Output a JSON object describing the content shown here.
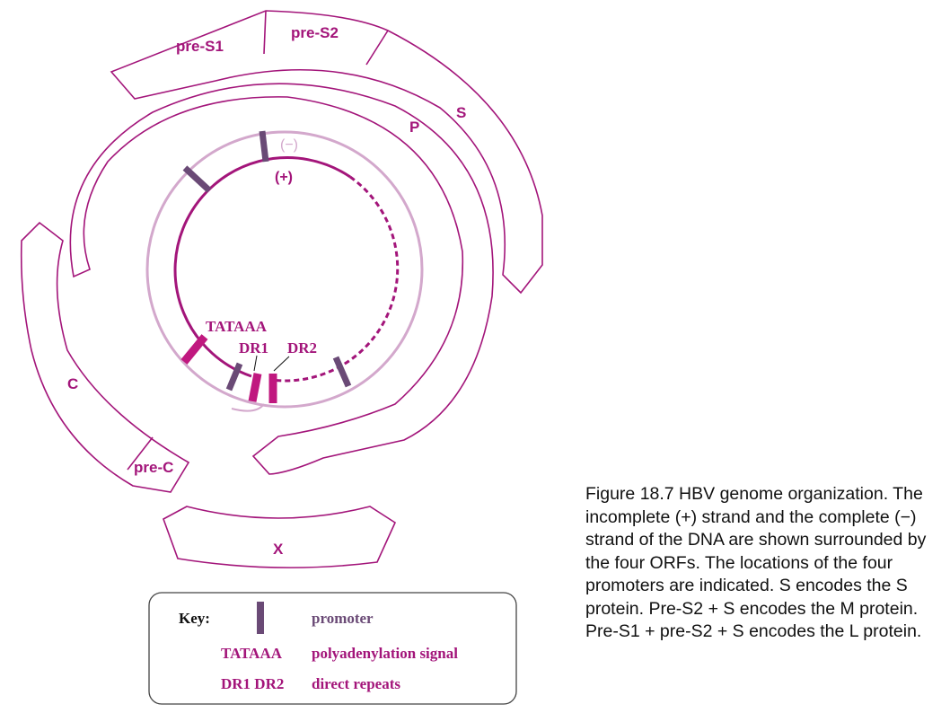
{
  "orfs": {
    "pre_s1": "pre-S1",
    "pre_s2": "pre-S2",
    "s": "S",
    "p": "P",
    "c": "C",
    "pre_c": "pre-C",
    "x": "X"
  },
  "strands": {
    "minus": "(−)",
    "plus": "(+)"
  },
  "features": {
    "tataaa": "TATAAA",
    "dr1": "DR1",
    "dr2": "DR2"
  },
  "key": {
    "title": "Key:",
    "promoter": "promoter",
    "tataaa_symbol": "TATAAA",
    "tataaa_desc": "polyadenylation signal",
    "dr_symbol": "DR1 DR2",
    "dr_desc": "direct repeats"
  },
  "caption": "Figure 18.7 HBV genome organization. The incomplete (+) strand and the complete (−) strand of the DNA are shown surrounded by the four ORFs. The locations of the four promoters are indicated. S encodes the S protein. Pre-S2 + S encodes the M protein. Pre-S1 + pre-S2 + S encodes the L protein.",
  "colors": {
    "magenta": "#a3157a",
    "light_strand": "#d3a8cc",
    "promoter": "#6a4a76"
  }
}
